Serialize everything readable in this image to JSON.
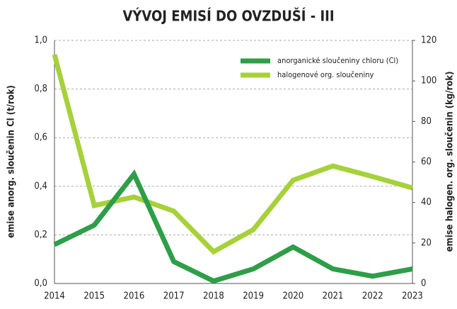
{
  "chart_data": {
    "type": "line",
    "title": "VÝVOJ EMISÍ DO OVZDUŠÍ - III",
    "y_label": "emise anorg. sloučenin Cl (t/rok)",
    "y2_label": "emise halogen. org. sloučenin (kg/rok)",
    "categories": [
      "2014",
      "2015",
      "2016",
      "2017",
      "2018",
      "2019",
      "2020",
      "2021",
      "2022",
      "2023"
    ],
    "series": [
      {
        "name": "anorganické sloučeniny chloru (Cl)",
        "color": "#2e9e48",
        "axis": "y",
        "values": [
          0.16,
          0.24,
          0.45,
          0.09,
          0.01,
          0.06,
          0.15,
          0.06,
          0.03,
          0.06
        ]
      },
      {
        "name": "halogenové org. sloučeniny",
        "color": "#a6d13a",
        "axis": "y2",
        "values": [
          113,
          38.5,
          42.7,
          35.7,
          15.7,
          26.6,
          51,
          58,
          52.8,
          47.2
        ]
      }
    ],
    "ylim": [
      0,
      1
    ],
    "yticks": [
      {
        "value": 0,
        "label": "0,0"
      },
      {
        "value": 0.2,
        "label": "0,2"
      },
      {
        "value": 0.4,
        "label": "0,4"
      },
      {
        "value": 0.6,
        "label": "0,6"
      },
      {
        "value": 0.8,
        "label": "0,8"
      },
      {
        "value": 1,
        "label": "1,0"
      }
    ],
    "y2lim": [
      0,
      120
    ],
    "y2ticks": [
      0,
      20,
      40,
      60,
      80,
      100,
      120
    ],
    "grid": true,
    "legend": "top-right"
  }
}
